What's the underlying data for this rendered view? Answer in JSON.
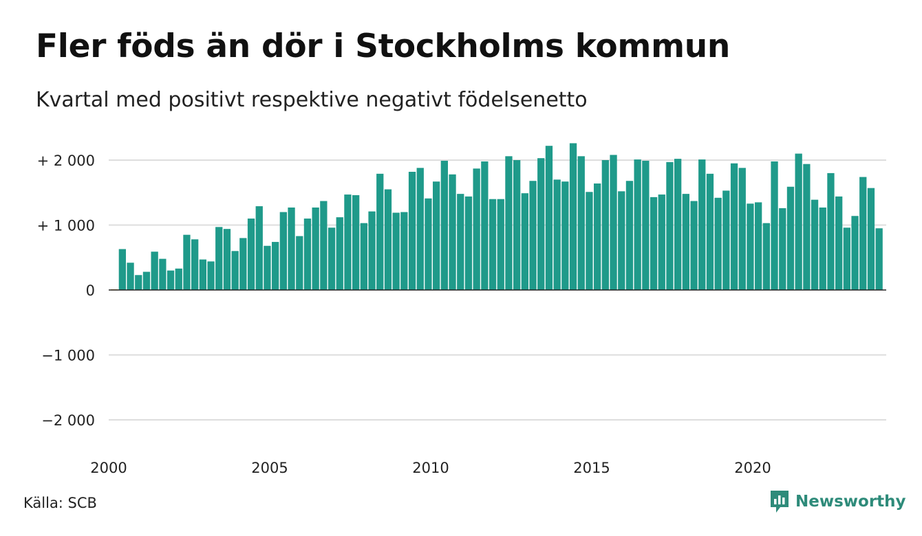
{
  "title": "Fler föds än dör i Stockholms kommun",
  "subtitle": "Kvartal med positivt respektive negativt födelsenetto",
  "source": "Källa: SCB",
  "brand": {
    "name": "Newsworthy",
    "logo_icon": "newsworthy-chart-icon",
    "color": "#2e8b7a"
  },
  "colors": {
    "positive": "#1f9a8a",
    "negative": "#e8a33d",
    "grid": "#dddddd",
    "zero_line": "#222222"
  },
  "chart_data": {
    "type": "bar",
    "title": "Fler föds än dör i Stockholms kommun",
    "subtitle": "Kvartal med positivt respektive negativt födelsenetto",
    "x_start": 2000.0,
    "x_step": 0.25,
    "values": [
      10,
      630,
      420,
      230,
      280,
      590,
      480,
      300,
      330,
      850,
      780,
      470,
      440,
      970,
      940,
      600,
      800,
      1100,
      1290,
      680,
      740,
      1200,
      1270,
      830,
      1100,
      1270,
      1370,
      960,
      1120,
      1470,
      1460,
      1030,
      1210,
      1790,
      1550,
      1190,
      1200,
      1820,
      1880,
      1410,
      1670,
      1990,
      1780,
      1480,
      1440,
      1870,
      1980,
      1400,
      1400,
      2060,
      2000,
      1490,
      1680,
      2030,
      2220,
      1700,
      1670,
      2260,
      2060,
      1510,
      1640,
      2000,
      2080,
      1520,
      1680,
      2010,
      1990,
      1430,
      1470,
      1970,
      2020,
      1480,
      1370,
      2010,
      1790,
      1420,
      1530,
      1950,
      1880,
      1330,
      1350,
      1030,
      1980,
      1260,
      1590,
      2100,
      1940,
      1390,
      1270,
      1800,
      1440,
      960,
      1140,
      1740,
      1570,
      950
    ],
    "ylim": [
      -2000,
      2000
    ],
    "yticks": [
      2000,
      1000,
      0,
      -1000,
      -2000
    ],
    "ytick_labels": [
      "+ 2 000",
      "+ 1 000",
      "0",
      "−1 000",
      "−2 000"
    ],
    "xticks": [
      2000,
      2005,
      2010,
      2015,
      2020
    ],
    "xtick_labels": [
      "2000",
      "2005",
      "2010",
      "2015",
      "2020"
    ],
    "grid": true
  }
}
